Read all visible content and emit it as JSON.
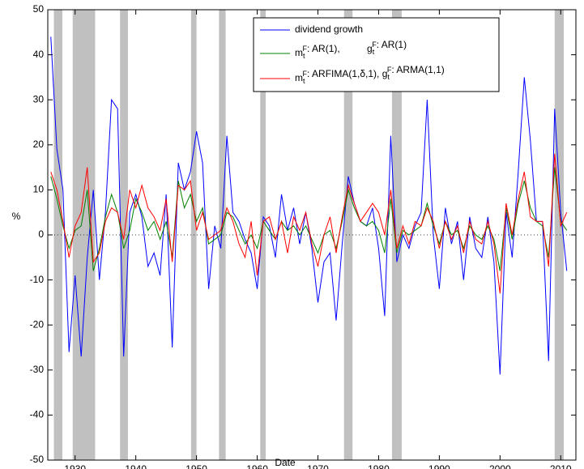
{
  "chart_data": {
    "type": "line",
    "x_label": "Date",
    "y_label": "%",
    "x": [
      1926,
      1927,
      1928,
      1929,
      1930,
      1931,
      1932,
      1933,
      1934,
      1935,
      1936,
      1937,
      1938,
      1939,
      1940,
      1941,
      1942,
      1943,
      1944,
      1945,
      1946,
      1947,
      1948,
      1949,
      1950,
      1951,
      1952,
      1953,
      1954,
      1955,
      1956,
      1957,
      1958,
      1959,
      1960,
      1961,
      1962,
      1963,
      1964,
      1965,
      1966,
      1967,
      1968,
      1969,
      1970,
      1971,
      1972,
      1973,
      1974,
      1975,
      1976,
      1977,
      1978,
      1979,
      1980,
      1981,
      1982,
      1983,
      1984,
      1985,
      1986,
      1987,
      1988,
      1989,
      1990,
      1991,
      1992,
      1993,
      1994,
      1995,
      1996,
      1997,
      1998,
      1999,
      2000,
      2001,
      2002,
      2003,
      2004,
      2005,
      2006,
      2007,
      2008,
      2009,
      2010,
      2011
    ],
    "series": [
      {
        "name": "dividend growth",
        "color": "#0000ff",
        "values": [
          44,
          19,
          10,
          -26,
          -9,
          -27,
          -5,
          10,
          -10,
          5,
          30,
          28,
          -27,
          5,
          9,
          4,
          -7,
          -4,
          -9,
          9,
          -25,
          16,
          10,
          14,
          23,
          16,
          -12,
          2,
          -3,
          22,
          5,
          3,
          -1,
          -4,
          -12,
          4,
          2,
          -5,
          9,
          1,
          6,
          -2,
          5,
          -3,
          -15,
          -6,
          -4,
          -19,
          -2,
          13,
          7,
          3,
          2,
          6,
          -3,
          -18,
          22,
          -6,
          0,
          -3,
          2,
          5,
          30,
          0,
          -12,
          6,
          -2,
          3,
          -10,
          4,
          -3,
          -5,
          4,
          -6,
          -31,
          5,
          -5,
          14,
          35,
          21,
          3,
          3,
          -28,
          28,
          5,
          -8
        ]
      },
      {
        "name": "m_t^F: AR(1),          g_t^F: AR(1)",
        "color": "#008000",
        "values": [
          13,
          8,
          2,
          -3,
          1,
          2,
          10,
          -8,
          -3,
          4,
          9,
          5,
          -3,
          1,
          8,
          5,
          1,
          3,
          -1,
          3,
          -5,
          12,
          6,
          9,
          3,
          6,
          -2,
          -1,
          0,
          5,
          4,
          1,
          -2,
          0,
          -3,
          3,
          1,
          -1,
          3,
          1,
          2,
          0,
          2,
          -1,
          -4,
          0,
          1,
          -3,
          3,
          10,
          6,
          3,
          2,
          3,
          1,
          -4,
          8,
          -4,
          1,
          0,
          1,
          2,
          7,
          2,
          -2,
          3,
          0,
          1,
          -3,
          2,
          0,
          -1,
          2,
          -1,
          -8,
          6,
          -1,
          7,
          12,
          6,
          3,
          2,
          -5,
          15,
          3,
          1
        ]
      },
      {
        "name": "m_t^F: ARFIMA(1,δ,1), g_t^F: ARMA(1,1)",
        "color": "#ff0000",
        "values": [
          14,
          10,
          3,
          -5,
          2,
          5,
          15,
          -6,
          -4,
          3,
          6,
          5,
          -1,
          10,
          6,
          11,
          6,
          4,
          1,
          8,
          -6,
          11,
          10,
          12,
          1,
          5,
          -1,
          0,
          1,
          6,
          3,
          -2,
          -5,
          3,
          -9,
          3,
          4,
          -1,
          3,
          -4,
          4,
          1,
          5,
          -2,
          -7,
          0,
          4,
          -4,
          4,
          11,
          7,
          3,
          5,
          7,
          5,
          0,
          10,
          -3,
          2,
          -2,
          3,
          2,
          6,
          3,
          -3,
          3,
          -1,
          2,
          -4,
          3,
          -1,
          -2,
          3,
          -2,
          -13,
          7,
          0,
          8,
          14,
          4,
          3,
          3,
          -7,
          18,
          2,
          5
        ]
      }
    ],
    "shaded_periods": [
      [
        1926.5,
        1927.9
      ],
      [
        1929.6,
        1933.3
      ],
      [
        1937.4,
        1938.7
      ],
      [
        1949.1,
        1950.0
      ],
      [
        1953.7,
        1954.8
      ],
      [
        1960.5,
        1961.4
      ],
      [
        1974.3,
        1975.7
      ],
      [
        1982.2,
        1983.8
      ],
      [
        2009.0,
        2010.5
      ]
    ],
    "zero_line": 0,
    "xlim": [
      1925.5,
      2012.5
    ],
    "xticks": [
      1930,
      1940,
      1950,
      1960,
      1970,
      1980,
      1990,
      2000,
      2010
    ],
    "ylim": [
      -50,
      50
    ],
    "yticks": [
      -50,
      -40,
      -30,
      -20,
      -10,
      0,
      10,
      20,
      30,
      40,
      50
    ],
    "legend": "upper right"
  }
}
